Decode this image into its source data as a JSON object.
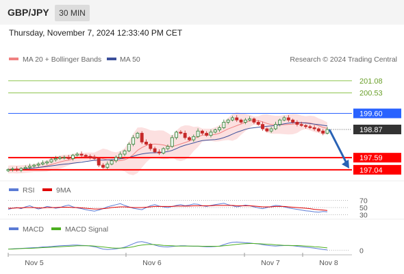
{
  "header": {
    "pair": "GBP/JPY",
    "timeframe": "30 MIN",
    "datetime": "Thursday, November 7, 2024 12:33:40 PM CET"
  },
  "watermark": "Research © 2024 Trading Central",
  "colors": {
    "up": "#2e7d32",
    "down": "#c62828",
    "ma20": "#f08080",
    "ma50": "#3b4f9a",
    "resistance": "#2962ff",
    "support": "#ff0000",
    "target": "#8bc34a",
    "arrow": "#2962b5"
  },
  "chart_data": [
    {
      "type": "candlestick",
      "legend": [
        "MA 20 + Bollinger Bands",
        "MA 50"
      ],
      "ylim": [
        196.6,
        201.7
      ],
      "x_ticks": [
        "Nov 5",
        "Nov 6",
        "Nov 7",
        "Nov 8"
      ],
      "levels": [
        {
          "value": 201.08,
          "label": "201.08",
          "kind": "target"
        },
        {
          "value": 200.53,
          "label": "200.53",
          "kind": "target"
        },
        {
          "value": 199.6,
          "label": "199.60",
          "kind": "resistance"
        },
        {
          "value": 198.87,
          "label": "198.87",
          "kind": "last"
        },
        {
          "value": 197.59,
          "label": "197.59",
          "kind": "support"
        },
        {
          "value": 197.04,
          "label": "197.04",
          "kind": "support"
        }
      ],
      "price_path": [
        197.05,
        197.08,
        197.02,
        197.1,
        197.15,
        197.2,
        197.25,
        197.3,
        197.35,
        197.4,
        197.5,
        197.55,
        197.6,
        197.6,
        197.55,
        197.7,
        197.75,
        197.7,
        197.65,
        197.6,
        197.55,
        197.25,
        197.15,
        197.3,
        197.45,
        197.6,
        197.75,
        197.9,
        198.2,
        198.5,
        198.7,
        198.3,
        198.2,
        198.0,
        197.85,
        197.8,
        198.0,
        198.1,
        198.5,
        198.75,
        198.7,
        198.5,
        198.4,
        198.55,
        198.8,
        198.7,
        198.6,
        198.75,
        198.85,
        198.95,
        199.2,
        199.3,
        199.4,
        199.3,
        199.2,
        199.3,
        199.35,
        199.2,
        199.1,
        198.9,
        198.8,
        198.9,
        199.1,
        199.3,
        199.4,
        199.3,
        199.2,
        199.1,
        199.05,
        199.0,
        198.95,
        198.9,
        198.8,
        198.7,
        198.87
      ],
      "forecast": {
        "from": 198.87,
        "to": 197.1
      }
    },
    {
      "type": "line",
      "legend": [
        "RSI",
        "9MA"
      ],
      "ylim": [
        25,
        75
      ],
      "y_ticks": [
        70,
        50,
        30
      ],
      "rsi": [
        45,
        48,
        50,
        47,
        52,
        55,
        50,
        46,
        49,
        53,
        51,
        48,
        50,
        54,
        57,
        52,
        49,
        47,
        44,
        42,
        40,
        43,
        47,
        52,
        55,
        58,
        61,
        56,
        52,
        48,
        46,
        44,
        50,
        55,
        58,
        54,
        52,
        50,
        53,
        56,
        58,
        55,
        57,
        60,
        59,
        55,
        53,
        56,
        58,
        60,
        62,
        58,
        55,
        52,
        54,
        57,
        55,
        52,
        49,
        47,
        50,
        53,
        56,
        55,
        52,
        49,
        47,
        45,
        43,
        41,
        40,
        38,
        37,
        39,
        38
      ],
      "ma9": [
        48,
        48,
        49,
        49,
        50,
        50,
        50,
        49,
        49,
        50,
        50,
        50,
        51,
        51,
        51,
        50,
        50,
        49,
        48,
        47,
        46,
        46,
        47,
        48,
        50,
        51,
        52,
        52,
        51,
        50,
        50,
        50,
        51,
        52,
        53,
        53,
        53,
        53,
        53,
        54,
        54,
        54,
        54,
        55,
        55,
        55,
        55,
        55,
        56,
        56,
        56,
        56,
        56,
        55,
        55,
        55,
        55,
        54,
        53,
        52,
        52,
        52,
        53,
        53,
        53,
        52,
        51,
        50,
        49,
        48,
        47,
        45,
        44,
        43,
        42
      ]
    },
    {
      "type": "line",
      "legend": [
        "MACD",
        "MACD Signal"
      ],
      "ylim": [
        -0.2,
        0.6
      ],
      "y_ticks": [
        0
      ],
      "macd": [
        0.05,
        0.06,
        0.07,
        0.08,
        0.09,
        0.1,
        0.11,
        0.12,
        0.14,
        0.15,
        0.16,
        0.18,
        0.19,
        0.2,
        0.21,
        0.22,
        0.22,
        0.21,
        0.2,
        0.18,
        0.15,
        0.1,
        0.05,
        0.03,
        0.04,
        0.06,
        0.09,
        0.13,
        0.2,
        0.28,
        0.35,
        0.37,
        0.33,
        0.28,
        0.22,
        0.17,
        0.15,
        0.14,
        0.16,
        0.18,
        0.19,
        0.19,
        0.18,
        0.17,
        0.17,
        0.16,
        0.15,
        0.15,
        0.16,
        0.18,
        0.24,
        0.3,
        0.34,
        0.35,
        0.34,
        0.32,
        0.31,
        0.29,
        0.27,
        0.24,
        0.21,
        0.19,
        0.18,
        0.19,
        0.2,
        0.2,
        0.19,
        0.17,
        0.15,
        0.13,
        0.11,
        0.09,
        0.06,
        0.03,
        0.01
      ],
      "signal": [
        0.05,
        0.05,
        0.06,
        0.07,
        0.08,
        0.08,
        0.09,
        0.1,
        0.11,
        0.12,
        0.13,
        0.14,
        0.15,
        0.16,
        0.17,
        0.18,
        0.19,
        0.19,
        0.19,
        0.19,
        0.18,
        0.16,
        0.14,
        0.12,
        0.1,
        0.09,
        0.09,
        0.1,
        0.12,
        0.15,
        0.19,
        0.22,
        0.24,
        0.25,
        0.24,
        0.23,
        0.21,
        0.2,
        0.19,
        0.18,
        0.18,
        0.18,
        0.18,
        0.18,
        0.18,
        0.17,
        0.17,
        0.17,
        0.17,
        0.17,
        0.19,
        0.21,
        0.23,
        0.25,
        0.27,
        0.28,
        0.29,
        0.29,
        0.28,
        0.27,
        0.26,
        0.25,
        0.23,
        0.22,
        0.21,
        0.21,
        0.2,
        0.2,
        0.19,
        0.18,
        0.17,
        0.15,
        0.14,
        0.12,
        0.1
      ]
    }
  ]
}
